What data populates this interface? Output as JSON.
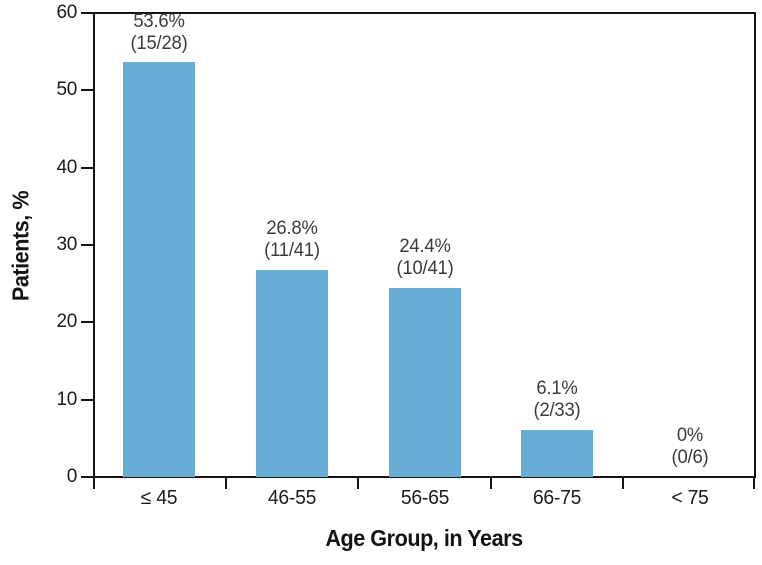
{
  "chart_data": {
    "type": "bar",
    "title": "",
    "categories": [
      "≤ 45",
      "46-55",
      "56-65",
      "66-75",
      "< 75"
    ],
    "values": [
      53.6,
      26.8,
      24.4,
      6.1,
      0
    ],
    "bar_labels": [
      [
        "53.6%",
        "(15/28)"
      ],
      [
        "26.8%",
        "(11/41)"
      ],
      [
        "24.4%",
        "(10/41)"
      ],
      [
        "6.1%",
        "(2/33)"
      ],
      [
        "0%",
        "(0/6)"
      ]
    ],
    "fractions": [
      {
        "numerator": 15,
        "denominator": 28
      },
      {
        "numerator": 11,
        "denominator": 41
      },
      {
        "numerator": 10,
        "denominator": 41
      },
      {
        "numerator": 2,
        "denominator": 33
      },
      {
        "numerator": 0,
        "denominator": 6
      }
    ],
    "xlabel": "Age Group, in Years",
    "ylabel": "Patients, %",
    "ylim": [
      0,
      60
    ],
    "yticks": [
      0,
      10,
      20,
      30,
      40,
      50,
      60
    ],
    "grid": false,
    "legend": "none",
    "bar_color": "#69ACD6",
    "axis_color": "#141414",
    "tick_label_color": "#1c1c1c",
    "value_label_color": "#3c3c3c",
    "background": "#ffffff"
  }
}
